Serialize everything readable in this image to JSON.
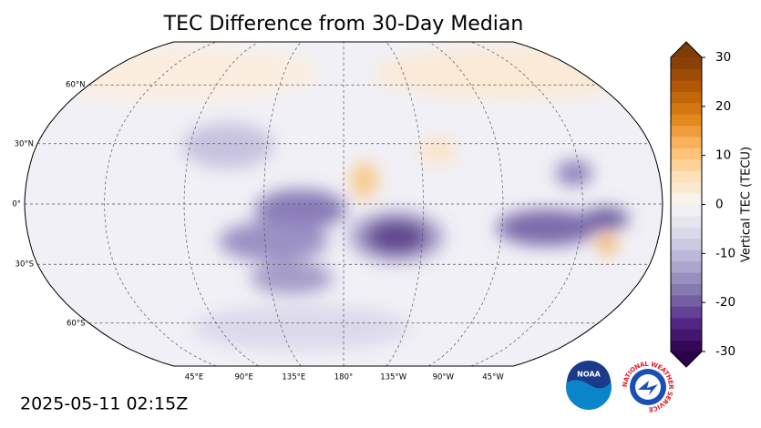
{
  "title": "TEC Difference from 30-Day Median",
  "map": {
    "lat_labels": [
      "60°N",
      "30°N",
      "0°",
      "30°S",
      "60°S"
    ],
    "lon_labels": [
      "45°E",
      "90°E",
      "135°E",
      "180°",
      "135°W",
      "90°W",
      "45°W"
    ]
  },
  "colorbar": {
    "label": "Vertical TEC (TECU)",
    "lim": [
      -30,
      30
    ],
    "ticks": [
      -30,
      -20,
      -10,
      0,
      10,
      20,
      30
    ],
    "colors": [
      "#2d004b",
      "#542788",
      "#8073ac",
      "#b2abd2",
      "#d8daeb",
      "#f7f7f7",
      "#fee0b6",
      "#fdb863",
      "#e08214",
      "#b35806",
      "#7f3b08"
    ]
  },
  "timestamp": "2025-05-11 02:15Z",
  "logos": {
    "noaa": "NOAA",
    "nws": "NATIONAL WEATHER SERVICE"
  }
}
